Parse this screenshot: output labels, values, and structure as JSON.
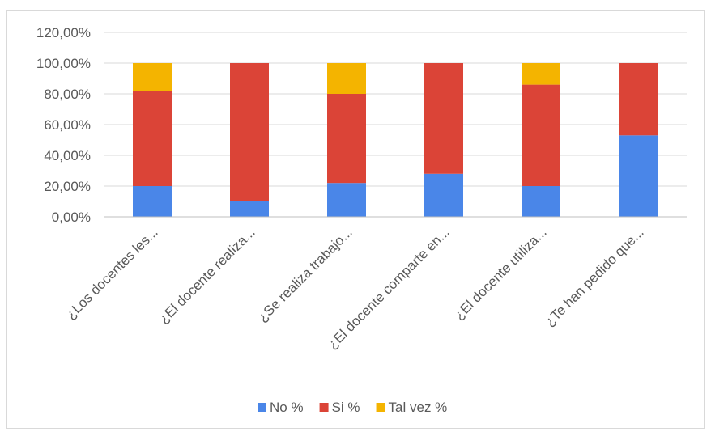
{
  "chart_data": {
    "type": "bar",
    "stacked": true,
    "categories": [
      "¿Los docentes les...",
      "¿El docente realiza...",
      "¿Se realiza trabajo...",
      "¿El docente comparte en...",
      "¿El docente utiliza...",
      "¿Te han pedido que..."
    ],
    "series": [
      {
        "name": "No %",
        "color": "#4a86e8",
        "values": [
          20,
          10,
          22,
          28,
          20,
          53
        ]
      },
      {
        "name": "Si %",
        "color": "#db4437",
        "values": [
          62,
          90,
          58,
          72,
          66,
          47
        ]
      },
      {
        "name": "Tal vez %",
        "color": "#f4b400",
        "values": [
          18,
          0,
          20,
          0,
          14,
          0
        ]
      }
    ],
    "y_ticks": [
      "0,00%",
      "20,00%",
      "40,00%",
      "60,00%",
      "80,00%",
      "100,00%",
      "120,00%"
    ],
    "ylim": [
      0,
      120
    ],
    "grid": true,
    "legend_position": "bottom"
  }
}
